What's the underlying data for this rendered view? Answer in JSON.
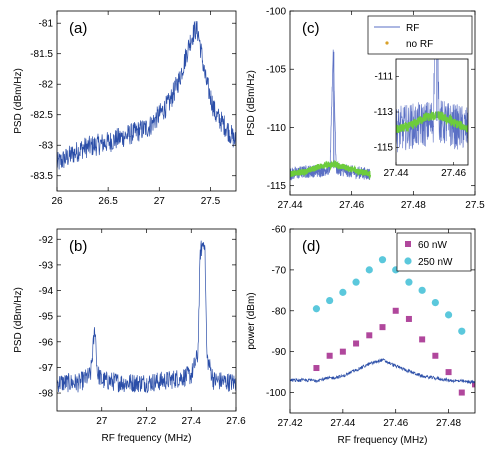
{
  "chart_data": [
    {
      "type": "line",
      "panel_label": "(a)",
      "xlabel": "",
      "ylabel": "PSD (dBm/Hz)",
      "xlim": [
        26.0,
        27.75
      ],
      "ylim": [
        -83.75,
        -80.8
      ],
      "xticks": [
        "26",
        "26.5",
        "27",
        "27.5"
      ],
      "xtick_values": [
        26.0,
        26.5,
        27.0,
        27.5
      ],
      "yticks": [
        "-81",
        "-81.5",
        "-82",
        "-82.5",
        "-83",
        "-83.5"
      ],
      "ytick_values": [
        -81.0,
        -81.5,
        -82.0,
        -82.5,
        -83.0,
        -83.5
      ],
      "series": [
        {
          "color": "#2b4ea8",
          "x": [
            26.0,
            26.25,
            26.5,
            26.75,
            26.9,
            27.0,
            27.1,
            27.2,
            27.3,
            27.35,
            27.38,
            27.45,
            27.55,
            27.65,
            27.75
          ],
          "y": [
            -83.3,
            -83.05,
            -82.95,
            -82.8,
            -82.7,
            -82.5,
            -82.3,
            -81.9,
            -81.3,
            -81.1,
            -81.15,
            -81.9,
            -82.5,
            -82.7,
            -82.95
          ]
        }
      ]
    },
    {
      "type": "line",
      "panel_label": "(b)",
      "xlabel": "RF frequency (MHz)",
      "ylabel": "PSD (dBm/Hz)",
      "xlim": [
        26.8,
        27.6
      ],
      "ylim": [
        -98.7,
        -91.6
      ],
      "xticks": [
        "27",
        "27.2",
        "27.4",
        "27.6"
      ],
      "xtick_values": [
        27.0,
        27.2,
        27.4,
        27.6
      ],
      "yticks": [
        "-92",
        "-93",
        "-94",
        "-95",
        "-96",
        "-97",
        "-98"
      ],
      "ytick_values": [
        -92,
        -93,
        -94,
        -95,
        -96,
        -97,
        -98
      ],
      "series": [
        {
          "color": "#2b4ea8",
          "x": [
            26.8,
            26.9,
            26.95,
            26.97,
            26.98,
            27.0,
            27.1,
            27.2,
            27.3,
            27.4,
            27.43,
            27.44,
            27.46,
            27.47,
            27.5,
            27.6
          ],
          "y": [
            -97.6,
            -97.6,
            -97.3,
            -95.4,
            -97.2,
            -97.5,
            -97.6,
            -97.6,
            -97.5,
            -97.3,
            -96.5,
            -92.5,
            -92.0,
            -96.6,
            -97.5,
            -97.6
          ]
        }
      ]
    },
    {
      "type": "line",
      "panel_label": "(c)",
      "xlabel": "",
      "ylabel": "PSD (dBm/Hz)",
      "xlim": [
        27.44,
        27.5
      ],
      "ylim": [
        -115.8,
        -100
      ],
      "xticks": [
        "27.44",
        "27.46",
        "27.48",
        "27.5"
      ],
      "xtick_values": [
        27.44,
        27.46,
        27.48,
        27.5
      ],
      "yticks": [
        "-100",
        "-105",
        "-110",
        "-115"
      ],
      "ytick_values": [
        -100,
        -105,
        -110,
        -115
      ],
      "legend_position": "top-right",
      "series": [
        {
          "name": "RF",
          "color": "#5a6fc4",
          "x": [
            27.44,
            27.445,
            27.45,
            27.453,
            27.454,
            27.455,
            27.456,
            27.46,
            27.466
          ],
          "y": [
            -114.0,
            -113.8,
            -113.7,
            -113.5,
            -103.5,
            -113.5,
            -113.6,
            -113.8,
            -114.0
          ]
        },
        {
          "name": "no RF",
          "color": "#6dcc3c",
          "x": [
            27.44,
            27.445,
            27.45,
            27.455,
            27.46,
            27.466
          ],
          "y": [
            -114.0,
            -113.8,
            -113.3,
            -113.2,
            -113.6,
            -114.0
          ]
        }
      ],
      "inset": {
        "xlim": [
          27.44,
          27.465
        ],
        "ylim": [
          -116,
          -110
        ],
        "xticks": [
          "27.44",
          "27.46"
        ],
        "xtick_values": [
          27.44,
          27.46
        ],
        "yticks": [
          "-111",
          "-113",
          "-115"
        ],
        "ytick_values": [
          -111,
          -113,
          -115
        ]
      }
    },
    {
      "type": "scatter",
      "panel_label": "(d)",
      "xlabel": "RF frequency (MHz)",
      "ylabel": "power (dBm)",
      "xlim": [
        27.42,
        27.49
      ],
      "ylim": [
        -105,
        -60
      ],
      "xticks": [
        "27.42",
        "27.44",
        "27.46",
        "27.48"
      ],
      "xtick_values": [
        27.42,
        27.44,
        27.46,
        27.48
      ],
      "yticks": [
        "-60",
        "-70",
        "-80",
        "-90",
        "-100"
      ],
      "ytick_values": [
        -60,
        -70,
        -80,
        -90,
        -100
      ],
      "legend_position": "top-right",
      "series": [
        {
          "name": "60 nW",
          "marker": "square",
          "color": "#b0479c",
          "x": [
            27.43,
            27.435,
            27.44,
            27.445,
            27.45,
            27.455,
            27.46,
            27.465,
            27.47,
            27.475,
            27.48,
            27.485,
            27.49
          ],
          "y": [
            -94,
            -91,
            -90,
            -88,
            -86,
            -84,
            -80,
            -82,
            -87,
            -91,
            -95,
            -100,
            -98
          ]
        },
        {
          "name": "250 nW",
          "marker": "circle",
          "color": "#5bc8dc",
          "x": [
            27.43,
            27.435,
            27.44,
            27.445,
            27.45,
            27.455,
            27.46,
            27.465,
            27.47,
            27.475,
            27.48,
            27.485
          ],
          "y": [
            -79.5,
            -77.5,
            -75.5,
            -73,
            -70,
            -67.5,
            -70,
            -73,
            -75,
            -78,
            -81,
            -85
          ]
        },
        {
          "type": "line",
          "color": "#2b4ea8",
          "x": [
            27.42,
            27.43,
            27.44,
            27.45,
            27.455,
            27.46,
            27.47,
            27.48,
            27.49
          ],
          "y": [
            -97,
            -97,
            -96,
            -93,
            -92,
            -93.5,
            -96,
            -97,
            -97.5
          ]
        }
      ]
    }
  ]
}
